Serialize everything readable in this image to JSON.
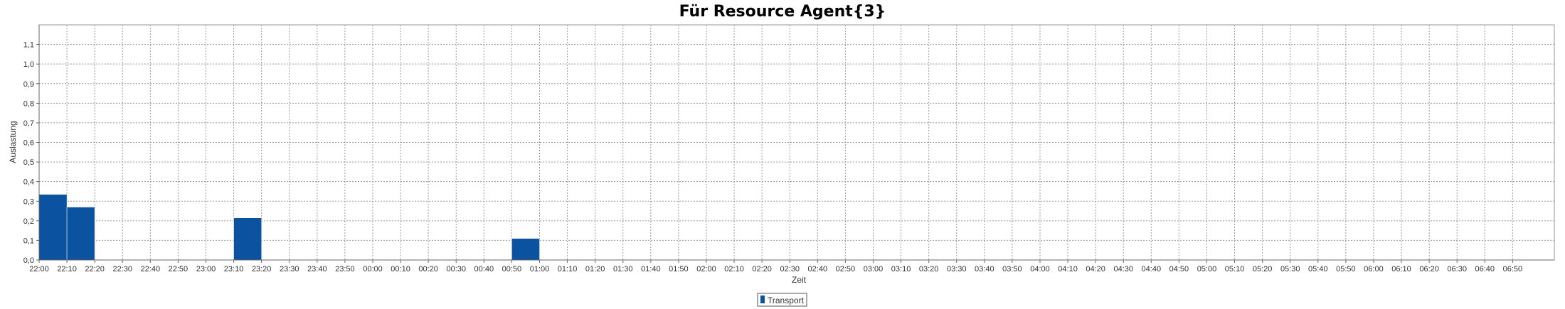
{
  "chart_data": {
    "type": "bar",
    "title": "Für Resource Agent{3}",
    "xlabel": "Zeit",
    "ylabel": "Auslastung",
    "x_tick_labels": [
      "22:00",
      "22:10",
      "22:20",
      "22:30",
      "22:40",
      "22:50",
      "23:00",
      "23:10",
      "23:20",
      "23:30",
      "23:40",
      "23:50",
      "00:00",
      "00:10",
      "00:20",
      "00:30",
      "00:40",
      "00:50",
      "01:00",
      "01:10",
      "01:20",
      "01:30",
      "01:40",
      "01:50",
      "02:00",
      "02:10",
      "02:20",
      "02:30",
      "02:40",
      "02:50",
      "03:00",
      "03:10",
      "03:20",
      "03:30",
      "03:40",
      "03:50",
      "04:00",
      "04:10",
      "04:20",
      "04:30",
      "04:40",
      "04:50",
      "05:00",
      "05:10",
      "05:20",
      "05:30",
      "05:40",
      "05:50",
      "06:00",
      "06:10",
      "06:20",
      "06:30",
      "06:40",
      "06:50"
    ],
    "y_tick_labels": [
      "0,0",
      "0,1",
      "0,2",
      "0,3",
      "0,4",
      "0,5",
      "0,6",
      "0,7",
      "0,8",
      "0,9",
      "1,0",
      "1,1"
    ],
    "ylim": [
      0,
      1.2
    ],
    "xlim": [
      "22:00",
      "07:05"
    ],
    "grid": true,
    "legend_position": "bottom-center",
    "series": [
      {
        "name": "Transport",
        "color": "#0b52a0",
        "bars": [
          {
            "start": "22:00",
            "end": "22:10",
            "value": 0.335
          },
          {
            "start": "22:10",
            "end": "22:20",
            "value": 0.27
          },
          {
            "start": "23:10",
            "end": "23:20",
            "value": 0.215
          },
          {
            "start": "00:50",
            "end": "01:00",
            "value": 0.11
          }
        ]
      }
    ]
  }
}
